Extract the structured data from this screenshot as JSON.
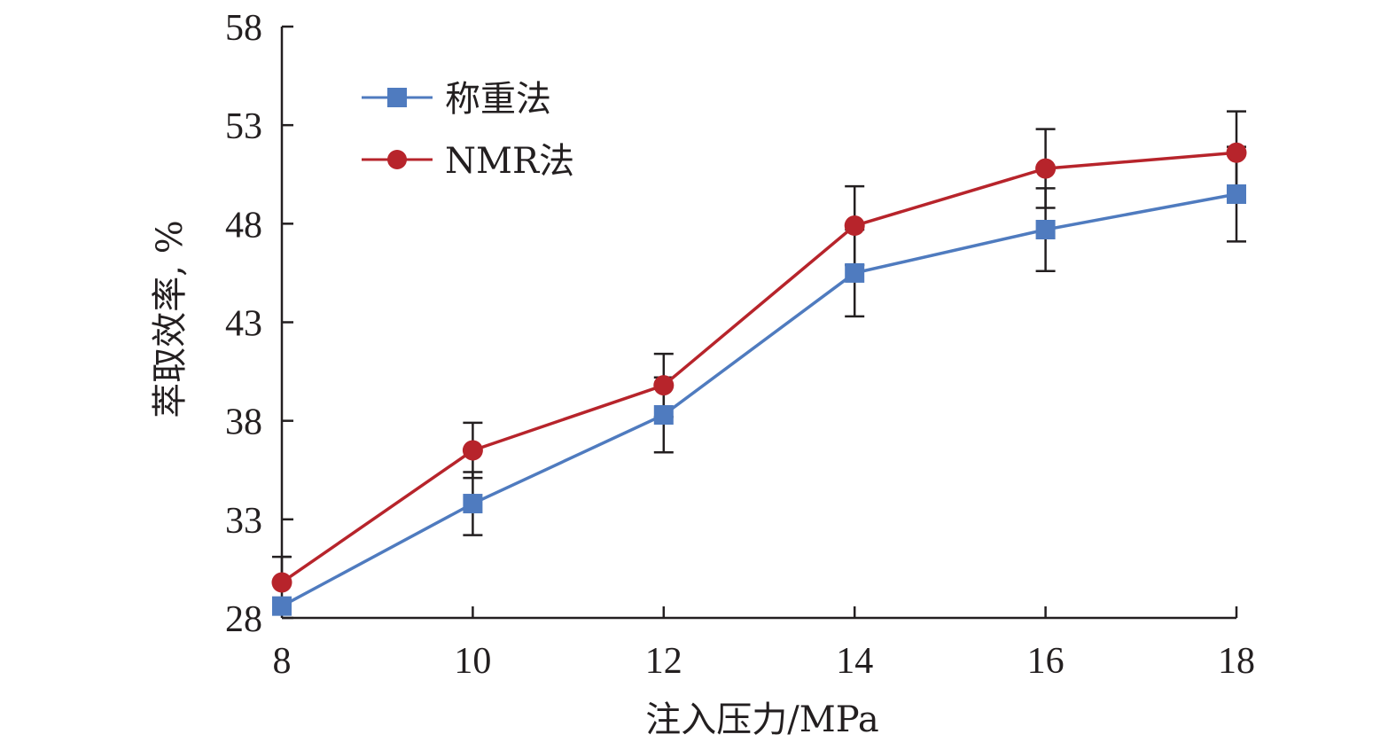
{
  "chart_data": {
    "type": "line",
    "title": "",
    "xlabel": "注入压力/MPa",
    "ylabel": "萃取效率, %",
    "xlim": [
      8,
      18
    ],
    "ylim": [
      28,
      58
    ],
    "x": [
      8,
      10,
      12,
      14,
      16,
      18
    ],
    "xticks": [
      "8",
      "10",
      "12",
      "14",
      "16",
      "18"
    ],
    "yticks": [
      "28",
      "33",
      "38",
      "43",
      "48",
      "53",
      "58"
    ],
    "grid": false,
    "legend_position": "top-left",
    "series": [
      {
        "name": "称重法",
        "marker": "square",
        "color": "#4f7bbf",
        "values": [
          28.6,
          33.8,
          38.3,
          45.5,
          47.7,
          49.5
        ],
        "errors": [
          null,
          1.6,
          1.9,
          2.2,
          2.1,
          2.4
        ]
      },
      {
        "name": "NMR法",
        "marker": "circle",
        "color": "#b7242b",
        "values": [
          29.8,
          36.5,
          39.8,
          47.9,
          50.8,
          51.6
        ],
        "errors": [
          1.3,
          1.4,
          1.6,
          2.0,
          2.0,
          2.1
        ]
      }
    ]
  }
}
